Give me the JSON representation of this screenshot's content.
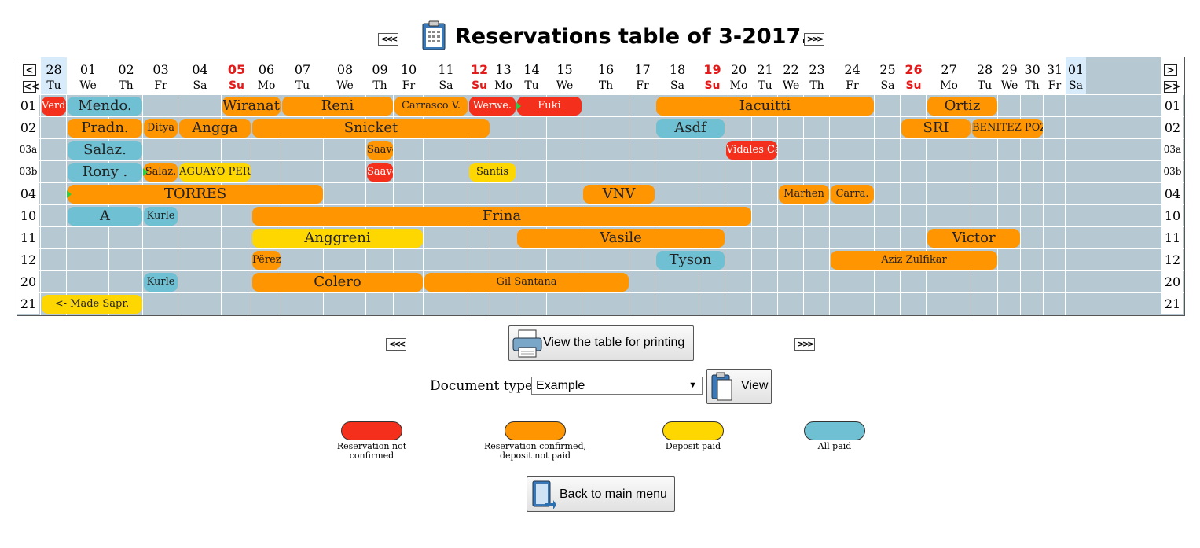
{
  "page": {
    "title": "Reservations table of 3-2017.",
    "prev_icon": "double-left-icon",
    "next_icon": "double-right-icon"
  },
  "days": [
    {
      "num": "28",
      "dn": "Tu"
    },
    {
      "num": "01",
      "dn": "We"
    },
    {
      "num": "02",
      "dn": "Th"
    },
    {
      "num": "03",
      "dn": "Fr"
    },
    {
      "num": "04",
      "dn": "Sa"
    },
    {
      "num": "05",
      "dn": "Su"
    },
    {
      "num": "06",
      "dn": "Mo"
    },
    {
      "num": "07",
      "dn": "Tu"
    },
    {
      "num": "08",
      "dn": "We"
    },
    {
      "num": "09",
      "dn": "Th"
    },
    {
      "num": "10",
      "dn": "Fr"
    },
    {
      "num": "11",
      "dn": "Sa"
    },
    {
      "num": "12",
      "dn": "Su"
    },
    {
      "num": "13",
      "dn": "Mo"
    },
    {
      "num": "14",
      "dn": "Tu"
    },
    {
      "num": "15",
      "dn": "We"
    },
    {
      "num": "16",
      "dn": "Th"
    },
    {
      "num": "17",
      "dn": "Fr"
    },
    {
      "num": "18",
      "dn": "Sa"
    },
    {
      "num": "19",
      "dn": "Su"
    },
    {
      "num": "20",
      "dn": "Mo"
    },
    {
      "num": "21",
      "dn": "Tu"
    },
    {
      "num": "22",
      "dn": "We"
    },
    {
      "num": "23",
      "dn": "Th"
    },
    {
      "num": "24",
      "dn": "Fr"
    },
    {
      "num": "25",
      "dn": "Sa"
    },
    {
      "num": "26",
      "dn": "Su"
    },
    {
      "num": "27",
      "dn": "Mo"
    },
    {
      "num": "28",
      "dn": "Tu"
    },
    {
      "num": "29",
      "dn": "We"
    },
    {
      "num": "30",
      "dn": "Th"
    },
    {
      "num": "31",
      "dn": "Fr"
    },
    {
      "num": "01",
      "dn": "Sa"
    }
  ],
  "rooms": [
    "01",
    "02",
    "03a",
    "03b",
    "04",
    "10",
    "11",
    "12",
    "20",
    "21"
  ],
  "reservations": [
    {
      "room": 0,
      "start": 0,
      "end": 0,
      "name": "Verdi",
      "status": 0
    },
    {
      "room": 0,
      "start": 1,
      "end": 2,
      "name": "Mendo.",
      "status": 3
    },
    {
      "room": 0,
      "start": 5,
      "end": 6,
      "name": "Wiranata",
      "status": 1
    },
    {
      "room": 0,
      "start": 7,
      "end": 9,
      "name": "Reni",
      "status": 1
    },
    {
      "room": 0,
      "start": 10,
      "end": 11,
      "name": "Carrasco V.",
      "status": 1
    },
    {
      "room": 0,
      "start": 12,
      "end": 13,
      "name": "Werwe.",
      "status": 0
    },
    {
      "room": 0,
      "start": 14,
      "end": 15,
      "name": "Fuki",
      "status": 0,
      "mark": true
    },
    {
      "room": 0,
      "start": 18,
      "end": 24,
      "name": "Iacuitti",
      "status": 1
    },
    {
      "room": 0,
      "start": 27,
      "end": 28,
      "name": "Ortiz",
      "status": 1
    },
    {
      "room": 1,
      "start": 1,
      "end": 2,
      "name": "Pradn.",
      "status": 1
    },
    {
      "room": 1,
      "start": 3,
      "end": 3,
      "name": "Ditya",
      "status": 1
    },
    {
      "room": 1,
      "start": 4,
      "end": 5,
      "name": "Angga",
      "status": 1
    },
    {
      "room": 1,
      "start": 6,
      "end": 12,
      "name": "Snicket",
      "status": 1
    },
    {
      "room": 1,
      "start": 18,
      "end": 19,
      "name": "Asdf",
      "status": 3
    },
    {
      "room": 1,
      "start": 26,
      "end": 27,
      "name": "SRI",
      "status": 1
    },
    {
      "room": 1,
      "start": 28,
      "end": 30,
      "name": "BENITEZ POZO",
      "status": 1
    },
    {
      "room": 2,
      "start": 1,
      "end": 2,
      "name": "Salaz.",
      "status": 3
    },
    {
      "room": 2,
      "start": 9,
      "end": 9,
      "name": "Saave.",
      "status": 1
    },
    {
      "room": 2,
      "start": 20,
      "end": 21,
      "name": "Vidales Castillo",
      "status": 0
    },
    {
      "room": 3,
      "start": 1,
      "end": 2,
      "name": "Rony .",
      "status": 3
    },
    {
      "room": 3,
      "start": 3,
      "end": 3,
      "name": "Salaz.",
      "status": 1,
      "mark": true
    },
    {
      "room": 3,
      "start": 4,
      "end": 5,
      "name": "AGUAYO PER.",
      "status": 2
    },
    {
      "room": 3,
      "start": 9,
      "end": 9,
      "name": "Saave.",
      "status": 0
    },
    {
      "room": 3,
      "start": 12,
      "end": 13,
      "name": "Santis",
      "status": 2
    },
    {
      "room": 4,
      "start": 1,
      "end": 7,
      "name": "TORRES",
      "status": 1,
      "mark": true
    },
    {
      "room": 4,
      "start": 16,
      "end": 17,
      "name": "VNV",
      "status": 1
    },
    {
      "room": 4,
      "start": 22,
      "end": 23,
      "name": "Marhen",
      "status": 1
    },
    {
      "room": 4,
      "start": 24,
      "end": 24,
      "name": "Carra.",
      "status": 1
    },
    {
      "room": 5,
      "start": 1,
      "end": 2,
      "name": "A",
      "status": 3
    },
    {
      "room": 5,
      "start": 3,
      "end": 3,
      "name": "Kurle",
      "status": 3
    },
    {
      "room": 5,
      "start": 6,
      "end": 20,
      "name": "Frina",
      "status": 1
    },
    {
      "room": 6,
      "start": 6,
      "end": 10,
      "name": "Anggreni",
      "status": 2
    },
    {
      "room": 6,
      "start": 14,
      "end": 19,
      "name": "Vasile",
      "status": 1
    },
    {
      "room": 6,
      "start": 27,
      "end": 29,
      "name": "Victor",
      "status": 1
    },
    {
      "room": 7,
      "start": 6,
      "end": 6,
      "name": "Përez.",
      "status": 1
    },
    {
      "room": 7,
      "start": 18,
      "end": 19,
      "name": "Tyson",
      "status": 3
    },
    {
      "room": 7,
      "start": 24,
      "end": 28,
      "name": "Aziz Zulfikar",
      "status": 1
    },
    {
      "room": 8,
      "start": 3,
      "end": 3,
      "name": "Kurle",
      "status": 3
    },
    {
      "room": 8,
      "start": 6,
      "end": 10,
      "name": "Colero",
      "status": 1
    },
    {
      "room": 8,
      "start": 11,
      "end": 16,
      "name": "Gil Santana",
      "status": 1
    },
    {
      "room": 9,
      "start": 0,
      "end": 2,
      "name": "<- Made Sapr.",
      "status": 2
    }
  ],
  "status_colors": [
    "#f4301c",
    "#ff9500",
    "#ffd700",
    "#6ec0d2"
  ],
  "print_button": {
    "label": "View the table for printing",
    "icon": "printer-icon"
  },
  "document": {
    "label": "Document type",
    "selected": "Example",
    "view_label": "View",
    "icon": "clipboard-icon"
  },
  "legend": [
    {
      "text": "Reservation not confirmed",
      "color": "#f4301c"
    },
    {
      "text": "Reservation confirmed, deposit not paid",
      "color": "#ff9500"
    },
    {
      "text": "Deposit paid",
      "color": "#ffd700"
    },
    {
      "text": "All paid",
      "color": "#6ec0d2"
    }
  ],
  "back_button": {
    "label": "Back to main menu",
    "icon": "back-book-icon"
  }
}
